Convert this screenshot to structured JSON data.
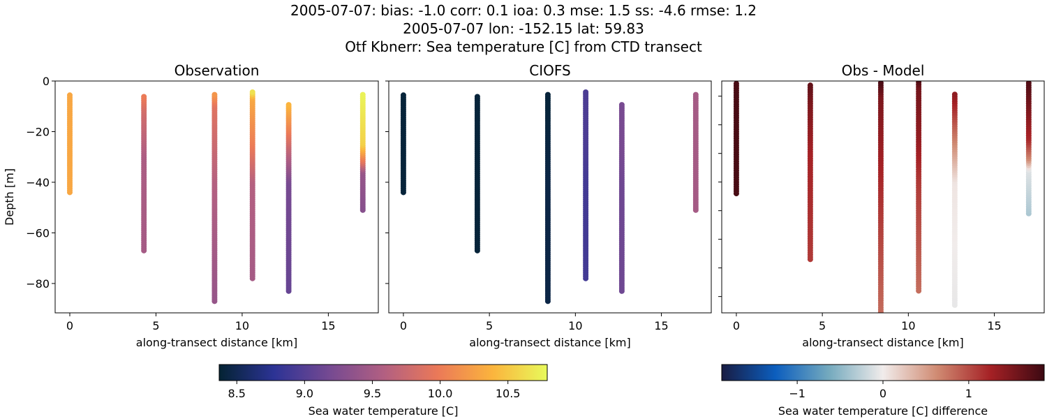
{
  "figure": {
    "title_lines": [
      "2005-07-07: bias: -1.0  corr: 0.1  ioa: 0.3  mse: 1.5  ss: -4.6  rmse: 1.2",
      "2005-07-07 lon: -152.15 lat: 59.83",
      "Otf Kbnerr: Sea temperature [C] from CTD transect"
    ]
  },
  "chart_data": [
    {
      "type": "scatter",
      "title": "Observation",
      "xlabel": "along-transect distance [km]",
      "ylabel": "Depth [m]",
      "xlim": [
        -0.85,
        17.9
      ],
      "ylim": [
        -91.6,
        0
      ],
      "xticks": [
        0,
        5,
        10,
        15
      ],
      "yticks": [
        0,
        -20,
        -40,
        -60,
        -80
      ],
      "ytick_labels": [
        "0",
        "−20",
        "−40",
        "−60",
        "−80"
      ],
      "colormap": "thermal",
      "value_key": "obs",
      "grid": false
    },
    {
      "type": "scatter",
      "title": "CIOFS",
      "xlabel": "along-transect distance [km]",
      "xlim": [
        -0.85,
        17.9
      ],
      "ylim": [
        -91.6,
        0
      ],
      "xticks": [
        0,
        5,
        10,
        15
      ],
      "yticks": [
        0,
        -20,
        -40,
        -60,
        -80
      ],
      "colormap": "thermal",
      "value_key": "model",
      "grid": false
    },
    {
      "type": "scatter",
      "title": "Obs - Model",
      "xlabel": "along-transect distance [km]",
      "xlim": [
        -0.85,
        17.9
      ],
      "ylim": [
        -85.7,
        -4.7
      ],
      "xticks": [
        0,
        5,
        10,
        15
      ],
      "yticks": [
        -10,
        -20,
        -30,
        -40,
        -50,
        -60,
        -70,
        -80
      ],
      "colormap": "balance",
      "value_key": "diff",
      "grid": false
    }
  ],
  "profiles": [
    {
      "x": 0.0,
      "depth": [
        -5,
        -44
      ],
      "obs": [
        10.3,
        10.3
      ],
      "model": [
        8.4,
        8.4
      ],
      "diff": [
        1.8,
        1.8
      ]
    },
    {
      "x": 4.3,
      "depth": [
        -6,
        -12,
        -30,
        -67
      ],
      "obs": [
        10.0,
        9.8,
        9.55,
        9.5
      ],
      "model": [
        8.4,
        8.4,
        8.4,
        8.4
      ],
      "diff": [
        1.65,
        1.5,
        1.25,
        1.1
      ]
    },
    {
      "x": 8.4,
      "depth": [
        -5,
        -10,
        -40,
        -87
      ],
      "obs": [
        10.2,
        9.9,
        9.6,
        9.4
      ],
      "model": [
        8.4,
        8.4,
        8.45,
        8.45
      ],
      "diff": [
        1.8,
        1.5,
        1.2,
        0.8
      ]
    },
    {
      "x": 10.6,
      "depth": [
        -4,
        -7,
        -25,
        -40,
        -78
      ],
      "obs": [
        10.7,
        10.3,
        10.0,
        9.6,
        9.5
      ],
      "model": [
        8.95,
        8.95,
        8.95,
        8.9,
        8.9
      ],
      "diff": [
        1.8,
        1.55,
        1.35,
        1.1,
        0.8
      ]
    },
    {
      "x": 12.7,
      "depth": [
        -9,
        -20,
        -27,
        -40,
        -83
      ],
      "obs": [
        10.4,
        10.0,
        9.7,
        9.2,
        9.1
      ],
      "model": [
        9.2,
        9.2,
        9.2,
        9.15,
        9.15
      ],
      "diff": [
        1.4,
        0.9,
        0.6,
        0.05,
        -0.05
      ]
    },
    {
      "x": 17.0,
      "depth": [
        -5,
        -25,
        -32,
        -36,
        -51
      ],
      "obs": [
        10.75,
        10.55,
        9.9,
        9.4,
        9.3
      ],
      "model": [
        9.5,
        9.5,
        9.5,
        9.5,
        9.5
      ],
      "diff": [
        1.75,
        1.2,
        0.6,
        -0.1,
        -0.35
      ]
    }
  ],
  "colorbars": [
    {
      "label": "Sea water temperature [C]",
      "range": [
        8.37,
        10.79
      ],
      "ticks": [
        8.5,
        9.0,
        9.5,
        10.0,
        10.5
      ],
      "tick_labels": [
        "8.5",
        "9.0",
        "9.5",
        "10.0",
        "10.5"
      ],
      "colormap": "thermal"
    },
    {
      "label": "Sea water temperature [C] difference",
      "range": [
        -1.88,
        1.88
      ],
      "ticks": [
        -1,
        0,
        1
      ],
      "tick_labels": [
        "−1",
        "0",
        "1"
      ],
      "colormap": "balance"
    }
  ],
  "colormaps": {
    "thermal": [
      "#042333",
      "#2c3395",
      "#744992",
      "#b15f82",
      "#eb7958",
      "#fbb43d",
      "#e8fa5b"
    ],
    "balance": [
      "#181c43",
      "#0c5ebe",
      "#75aabe",
      "#f1eceb",
      "#d08b73",
      "#a52125",
      "#3c0912"
    ]
  }
}
